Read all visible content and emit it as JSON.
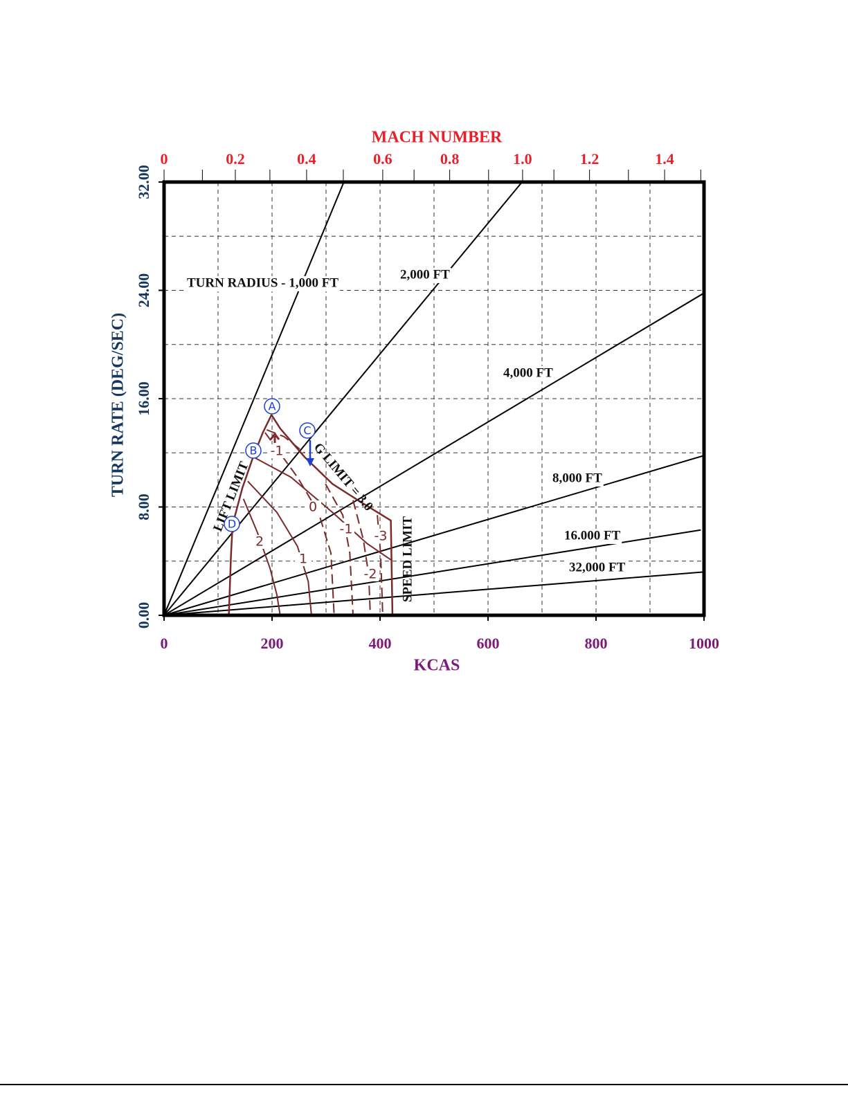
{
  "chart_data": {
    "type": "line",
    "title": "MACH NUMBER",
    "x_label": "KCAS",
    "y_label": "TURN RATE (DEG/SEC)",
    "xlim": [
      0,
      1000
    ],
    "ylim": [
      0,
      32
    ],
    "xticks": [
      0,
      200,
      400,
      600,
      800,
      1000
    ],
    "yticks": [
      {
        "value": 0,
        "label": "0.00"
      },
      {
        "value": 8,
        "label": "8.00"
      },
      {
        "value": 16,
        "label": "16.00"
      },
      {
        "value": 24,
        "label": "24.00"
      },
      {
        "value": 32,
        "label": "32.00"
      }
    ],
    "xgrid": [
      100,
      200,
      300,
      400,
      500,
      600,
      700,
      800,
      900
    ],
    "ygrid": [
      4,
      8,
      12,
      16,
      20,
      24,
      28
    ],
    "grid": true,
    "mach_ticks": [
      0,
      0.2,
      0.4,
      0.6,
      0.8,
      {
        "value": 1,
        "label": "1.0"
      },
      1.2,
      1.4
    ],
    "mach_ticks_kcas": [
      0,
      132,
      264,
      405,
      529,
      664,
      788,
      927
    ],
    "mach_minor_kcas": [
      71,
      196,
      332,
      463,
      601,
      722,
      860,
      994
    ],
    "radius_lines": [
      {
        "name": "TURN RADIUS - 1,000 FT",
        "x": [
          0,
          333
        ],
        "y": [
          0,
          32
        ]
      },
      {
        "name": "2,000 FT",
        "x": [
          0,
          663
        ],
        "y": [
          0,
          32
        ]
      },
      {
        "name": "4,000 FT",
        "x": [
          0,
          1000
        ],
        "y": [
          0,
          23.8
        ]
      },
      {
        "name": "8,000 FT",
        "x": [
          0,
          1000
        ],
        "y": [
          0,
          11.8
        ]
      },
      {
        "name": "16.000 FT",
        "x": [
          0,
          994
        ],
        "y": [
          0,
          6.3
        ]
      },
      {
        "name": "32,000 FT",
        "x": [
          0,
          1000
        ],
        "y": [
          0,
          3.2
        ]
      }
    ],
    "color": "#7b2a2a",
    "envelope": {
      "x": [
        120,
        124,
        127,
        145,
        165,
        183,
        199,
        215,
        260,
        312,
        363,
        420,
        423
      ],
      "y": [
        0,
        4.5,
        6.7,
        9.4,
        11.7,
        13.5,
        14.8,
        13.8,
        11.7,
        9.7,
        8.4,
        7.0,
        0
      ]
    },
    "inner_curve": {
      "x": [
        165,
        235,
        312,
        376,
        420
      ],
      "y": [
        11.7,
        10.2,
        7.6,
        5.3,
        4.1
      ]
    },
    "contours": [
      {
        "name": "2",
        "dashed": false,
        "x": [
          147,
          173,
          196,
          209,
          215
        ],
        "y": [
          8.6,
          6.1,
          3.5,
          1.5,
          0
        ]
      },
      {
        "name": "1",
        "dashed": false,
        "x": [
          155,
          209,
          247,
          267,
          273
        ],
        "y": [
          9.9,
          7.6,
          5.1,
          2.5,
          0
        ]
      },
      {
        "name": "0",
        "dashed": true,
        "x": [
          187,
          247,
          286,
          309,
          315
        ],
        "y": [
          13.5,
          10.2,
          7.6,
          4.6,
          0
        ]
      },
      {
        "name": "-1",
        "dashed": true,
        "x": [
          299,
          331,
          344,
          350
        ],
        "y": [
          9.7,
          7.4,
          4.6,
          0
        ]
      },
      {
        "name": "-2",
        "dashed": true,
        "x": [
          350,
          369,
          379,
          382
        ],
        "y": [
          8.5,
          5.6,
          3.0,
          0
        ]
      },
      {
        "name": "-3",
        "dashed": true,
        "x": [
          395,
          401,
          405
        ],
        "y": [
          7.4,
          4.6,
          0
        ]
      },
      {
        "name": "-1",
        "dashed": true,
        "x": [
          190,
          222,
          260
        ],
        "y": [
          13.7,
          13.2,
          12.0
        ]
      }
    ],
    "annotations": [
      "LIFT LIMIT",
      "G LIMIT = 3.0",
      "SPEED LIMIT"
    ],
    "points": [
      "A",
      "B",
      "C",
      "D"
    ]
  }
}
